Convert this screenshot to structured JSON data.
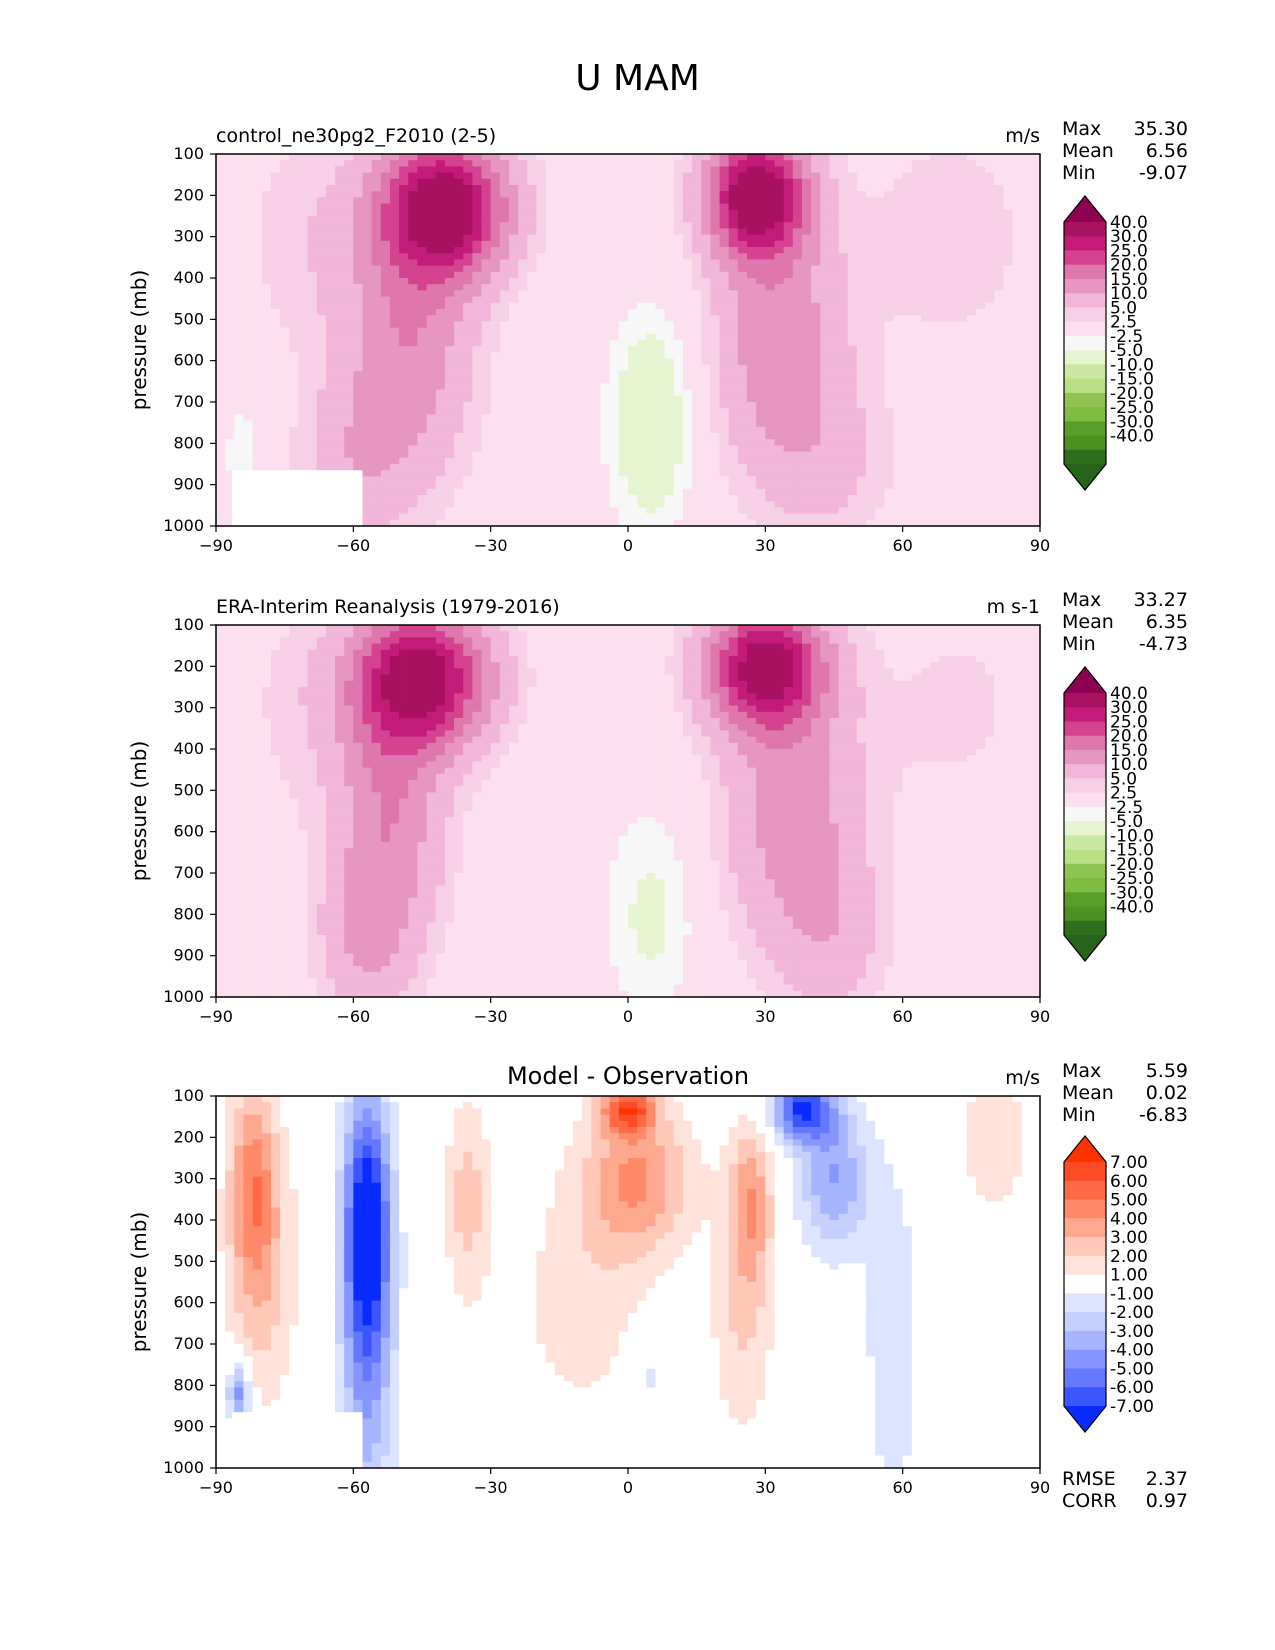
{
  "title": "U MAM",
  "chart_data": [
    {
      "type": "heatmap",
      "subtitle": "control_ne30pg2_F2010 (2-5)",
      "units": "m/s",
      "xlabel": "",
      "ylabel": "pressure (mb)",
      "xlim": [
        -90,
        90
      ],
      "ylim": [
        1000,
        100
      ],
      "xticks": [
        "−90",
        "−60",
        "−30",
        "0",
        "30",
        "60",
        "90"
      ],
      "yticks": [
        "100",
        "200",
        "300",
        "400",
        "500",
        "600",
        "700",
        "800",
        "900",
        "1000"
      ],
      "stats": [
        {
          "label": "Max",
          "value": "35.30"
        },
        {
          "label": "Mean",
          "value": "6.56"
        },
        {
          "label": "Min",
          "value": "-9.07"
        }
      ],
      "colorbar_levels": [
        "40.0",
        "30.0",
        "25.0",
        "20.0",
        "15.0",
        "10.0",
        "5.0",
        "2.5",
        "-2.5",
        "-5.0",
        "-10.0",
        "-15.0",
        "-20.0",
        "-25.0",
        "-30.0",
        "-40.0"
      ],
      "colorbar_colors": [
        "#8e0152",
        "#a8115f",
        "#c21b78",
        "#d5428f",
        "#de77ae",
        "#e696c1",
        "#f1b6da",
        "#f6d0e6",
        "#fde0ef",
        "#f7f7f7",
        "#e6f5d0",
        "#c9e8a1",
        "#b8e186",
        "#8fc454",
        "#7fbc41",
        "#5a9e2a",
        "#4d9221",
        "#2e6e1d",
        "#276419"
      ],
      "jets": [
        {
          "lat": -40,
          "plev": 230,
          "value": 35.3
        },
        {
          "lat": 28,
          "plev": 200,
          "value": 35.0
        }
      ]
    },
    {
      "type": "heatmap",
      "subtitle": "ERA-Interim Reanalysis (1979-2016)",
      "units": "m s-1",
      "xlabel": "",
      "ylabel": "pressure (mb)",
      "xlim": [
        -90,
        90
      ],
      "ylim": [
        1000,
        100
      ],
      "xticks": [
        "−90",
        "−60",
        "−30",
        "0",
        "30",
        "60",
        "90"
      ],
      "yticks": [
        "100",
        "200",
        "300",
        "400",
        "500",
        "600",
        "700",
        "800",
        "900",
        "1000"
      ],
      "stats": [
        {
          "label": "Max",
          "value": "33.27"
        },
        {
          "label": "Mean",
          "value": "6.35"
        },
        {
          "label": "Min",
          "value": "-4.73"
        }
      ],
      "colorbar_levels": [
        "40.0",
        "30.0",
        "25.0",
        "20.0",
        "15.0",
        "10.0",
        "5.0",
        "2.5",
        "-2.5",
        "-5.0",
        "-10.0",
        "-15.0",
        "-20.0",
        "-25.0",
        "-30.0",
        "-40.0"
      ],
      "colorbar_colors": [
        "#8e0152",
        "#a8115f",
        "#c21b78",
        "#d5428f",
        "#de77ae",
        "#e696c1",
        "#f1b6da",
        "#f6d0e6",
        "#fde0ef",
        "#f7f7f7",
        "#e6f5d0",
        "#c9e8a1",
        "#b8e186",
        "#8fc454",
        "#7fbc41",
        "#5a9e2a",
        "#4d9221",
        "#2e6e1d",
        "#276419"
      ],
      "jets": [
        {
          "lat": -45,
          "plev": 230,
          "value": 33.3
        },
        {
          "lat": 30,
          "plev": 200,
          "value": 33.0
        }
      ]
    },
    {
      "type": "heatmap",
      "subtitle": "Model - Observation",
      "units": "m/s",
      "xlabel": "",
      "ylabel": "pressure (mb)",
      "xlim": [
        -90,
        90
      ],
      "ylim": [
        1000,
        100
      ],
      "xticks": [
        "−90",
        "−60",
        "−30",
        "0",
        "30",
        "60",
        "90"
      ],
      "yticks": [
        "100",
        "200",
        "300",
        "400",
        "500",
        "600",
        "700",
        "800",
        "900",
        "1000"
      ],
      "stats": [
        {
          "label": "Max",
          "value": "5.59"
        },
        {
          "label": "Mean",
          "value": "0.02"
        },
        {
          "label": "Min",
          "value": "-6.83"
        }
      ],
      "extra_stats": [
        {
          "label": "RMSE",
          "value": "2.37"
        },
        {
          "label": "CORR",
          "value": "0.97"
        }
      ],
      "colorbar_levels": [
        "7.00",
        "6.00",
        "5.00",
        "4.00",
        "3.00",
        "2.00",
        "1.00",
        "-1.00",
        "-2.00",
        "-3.00",
        "-4.00",
        "-5.00",
        "-6.00",
        "-7.00"
      ],
      "colorbar_colors": [
        "#ff3300",
        "#ff4a26",
        "#ff6a45",
        "#ff8a6a",
        "#ffa890",
        "#ffc8b8",
        "#ffe2da",
        "#ffffff",
        "#dde4ff",
        "#c5d0ff",
        "#a6b5ff",
        "#8597ff",
        "#6479ff",
        "#3b55ff",
        "#0a2bff"
      ]
    }
  ]
}
